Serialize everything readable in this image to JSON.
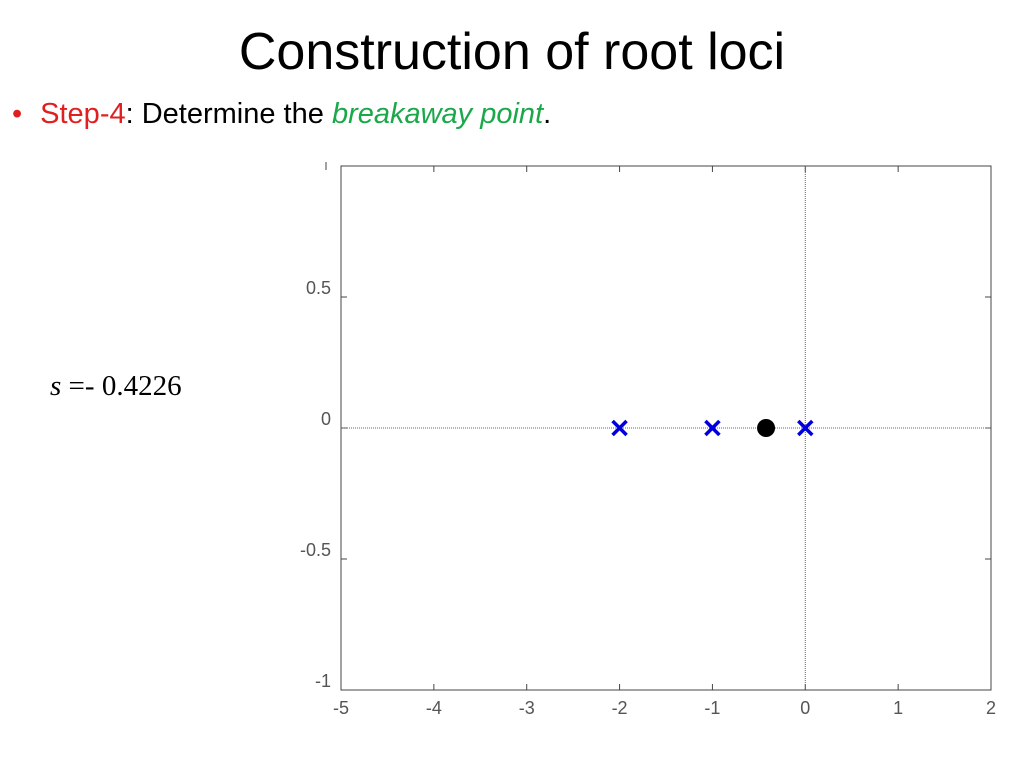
{
  "title": "Construction of root loci",
  "bullet": {
    "label": "Step-4",
    "text": ": Determine the ",
    "emphasis": "breakaway point",
    "end": "."
  },
  "equation": {
    "variable": "s",
    "operator": "=-",
    "value": "0.4226"
  },
  "chart_data": {
    "type": "scatter",
    "xlim": [
      -5,
      2
    ],
    "ylim": [
      -1,
      1
    ],
    "xticks": [
      -5,
      -4,
      -3,
      -2,
      -1,
      0,
      1,
      2
    ],
    "yticks": [
      -1,
      -0.5,
      0,
      0.5
    ],
    "series": [
      {
        "marker": "x",
        "color": "#0000dd",
        "x": [
          -2,
          -1,
          0
        ],
        "values": [
          0,
          0,
          0
        ]
      },
      {
        "marker": "circle",
        "color": "#000000",
        "x": [
          -0.4226
        ],
        "values": [
          0
        ]
      }
    ]
  }
}
